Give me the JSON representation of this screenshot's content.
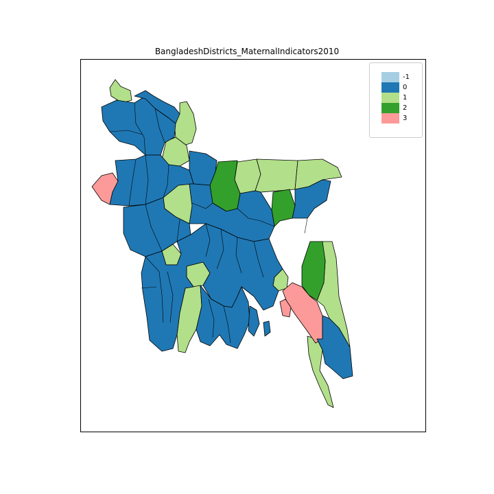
{
  "title": "BangladeshDistricts_MaternalIndicators2010",
  "legend": {
    "placement": "top-right",
    "items": [
      {
        "label": "-1",
        "color": "#a6cee3"
      },
      {
        "label": "0",
        "color": "#1f78b4"
      },
      {
        "label": "1",
        "color": "#b2df8a"
      },
      {
        "label": "2",
        "color": "#33a02c"
      },
      {
        "label": "3",
        "color": "#fb9a99"
      }
    ]
  },
  "map": {
    "region": "Bangladesh districts",
    "border_color": "#000000",
    "category_colors": {
      "-1": "#a6cee3",
      "0": "#1f78b4",
      "1": "#b2df8a",
      "2": "#33a02c",
      "3": "#fb9a99"
    }
  }
}
